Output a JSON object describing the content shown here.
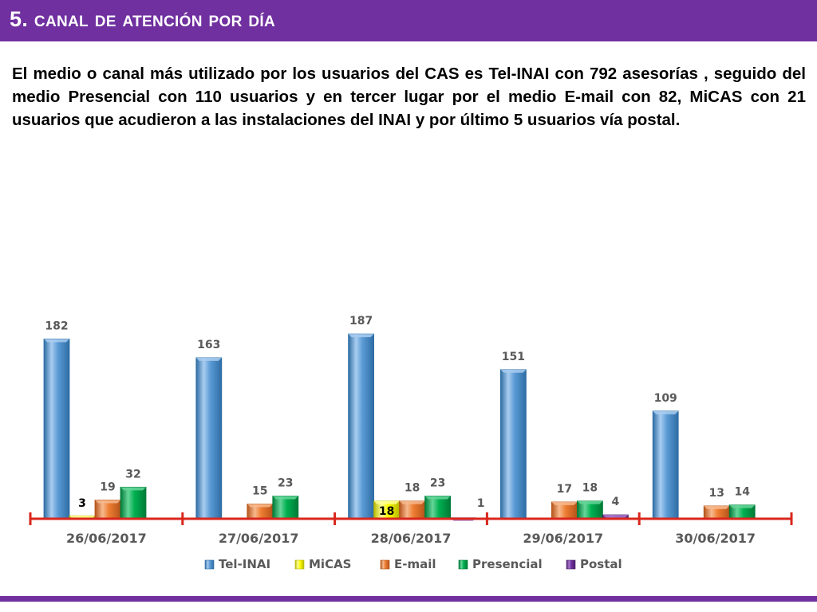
{
  "slide": {
    "title": "5. Canal de atención por día",
    "intro": "El medio o canal más utilizado por los usuarios del CAS es Tel-INAI con 792 asesorías , seguido del medio Presencial con 110 usuarios y en tercer lugar por el medio E-mail con 82, MiCAS con 21 usuarios que acudieron a las instalaciones del INAI y por último 5 usuarios vía postal."
  },
  "colors": {
    "header": "#7030a0",
    "axis": "#d9261c",
    "label_text": "#595959"
  },
  "chart_data": {
    "type": "bar",
    "title": "",
    "xlabel": "",
    "ylabel": "",
    "categories": [
      "26/06/2017",
      "27/06/2017",
      "28/06/2017",
      "29/06/2017",
      "30/06/2017"
    ],
    "legend_position": "bottom",
    "grid": false,
    "series": [
      {
        "name": "Tel-INAI",
        "color": "#5b9bd5",
        "dark": "#2e6da4",
        "light": "#a9cdf0",
        "values": [
          182,
          163,
          187,
          151,
          109
        ]
      },
      {
        "name": "MiCAS",
        "color": "#ffff00",
        "dark": "#b8b800",
        "light": "#ffff99",
        "values": [
          3,
          null,
          18,
          null,
          null
        ]
      },
      {
        "name": "E-mail",
        "color": "#ed7d31",
        "dark": "#b5541a",
        "light": "#f7b98d",
        "values": [
          19,
          15,
          18,
          17,
          13
        ]
      },
      {
        "name": "Presencial",
        "color": "#00b050",
        "dark": "#007a37",
        "light": "#66d699",
        "values": [
          32,
          23,
          23,
          18,
          14
        ]
      },
      {
        "name": "Postal",
        "color": "#7030a0",
        "dark": "#4b1f6b",
        "light": "#a877cc",
        "values": [
          null,
          null,
          1,
          4,
          null
        ]
      }
    ]
  }
}
